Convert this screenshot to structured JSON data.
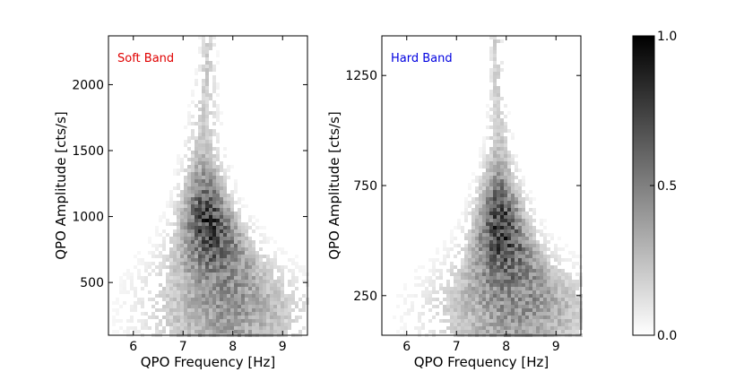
{
  "chart_data": [
    {
      "type": "heatmap",
      "panel_label": "Soft Band",
      "panel_label_color": "#e00000",
      "xlabel": "QPO Frequency [Hz]",
      "ylabel": "QPO Amplitude [cts/s]",
      "xlim": [
        5.5,
        9.5
      ],
      "ylim": [
        100,
        2370
      ],
      "xticks": [
        6,
        7,
        8,
        9
      ],
      "yticks": [
        500,
        1000,
        1500,
        2000
      ],
      "density_model": {
        "x": [
          7.5,
          7.45,
          7.4,
          7.45,
          7.6,
          7.75,
          7.9
        ],
        "y": [
          2200,
          1900,
          1500,
          1100,
          800,
          550,
          350
        ],
        "spread_x": [
          0.1,
          0.15,
          0.23,
          0.31,
          0.45,
          0.65,
          0.85
        ],
        "peak_y": 950,
        "sigma_y": 260,
        "peak_x": 7.45,
        "sigma_x": 0.3,
        "background": 0.05
      }
    },
    {
      "type": "heatmap",
      "panel_label": "Hard Band",
      "panel_label_color": "#0000e0",
      "xlabel": "QPO Frequency [Hz]",
      "ylabel": "QPO Amplitude [cts/s]",
      "xlim": [
        5.5,
        9.5
      ],
      "ylim": [
        70,
        1430
      ],
      "xticks": [
        6,
        7,
        8,
        9
      ],
      "yticks": [
        250,
        750,
        1250
      ],
      "density_model": {
        "x": [
          7.8,
          7.85,
          7.85,
          7.9,
          8.0,
          8.1,
          8.2
        ],
        "y": [
          1200,
          1000,
          800,
          550,
          400,
          300,
          200
        ],
        "spread_x": [
          0.08,
          0.14,
          0.22,
          0.35,
          0.5,
          0.7,
          0.95
        ],
        "peak_y": 560,
        "sigma_y": 170,
        "peak_x": 7.9,
        "sigma_x": 0.28,
        "background": 0.05
      }
    }
  ],
  "colorbar": {
    "ticks": [
      "1.0",
      "0.5",
      "0.0"
    ],
    "values": [
      1.0,
      0.5,
      0.0
    ],
    "range": [
      0.0,
      1.0
    ],
    "colormap": "white-to-black"
  }
}
